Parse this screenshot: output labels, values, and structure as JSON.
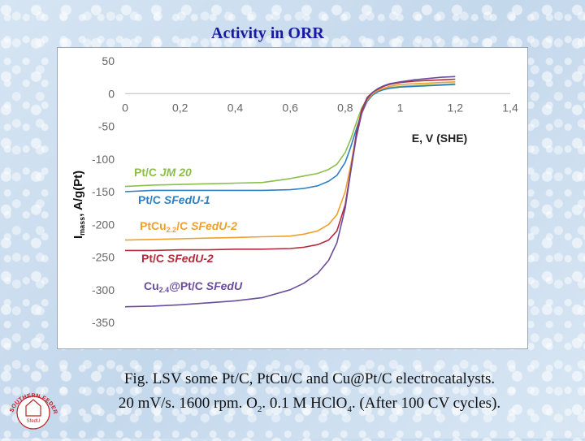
{
  "slide": {
    "title": "Activity in ORR",
    "caption_line1": "Fig. LSV some Pt/C, PtCu/C and Cu@Pt/C electrocatalysts.",
    "caption_line2_a": "20 mV/s. 1600 rpm. O",
    "caption_line2_sub1": "2",
    "caption_line2_b": ". 0.1 M HClO",
    "caption_line2_sub2": "4",
    "caption_line2_c": ". (After 100 CV cycles).",
    "logo_text": "SOUTHERN FEDERAL UNIVERSITY",
    "logo_mark": "SfedU"
  },
  "chart_data": {
    "type": "line",
    "title": "",
    "xlabel": "E, V (SHE)",
    "ylabel_main": "I",
    "ylabel_sub": "mass",
    "ylabel_rest": ", A/g(Pt)",
    "xlim": [
      0,
      1.4
    ],
    "ylim": [
      -350,
      50
    ],
    "x_ticks": [
      0,
      0.2,
      0.4,
      0.6,
      0.8,
      1,
      1.2,
      1.4
    ],
    "x_tick_labels": [
      "0",
      "0,2",
      "0,4",
      "0,6",
      "0,8",
      "1",
      "1,2",
      "1,4"
    ],
    "y_ticks": [
      50,
      0,
      -50,
      -100,
      -150,
      -200,
      -250,
      -300,
      -350
    ],
    "y_tick_labels": [
      "50",
      "0",
      "-50",
      "-100",
      "-150",
      "-200",
      "-250",
      "-300",
      "-350"
    ],
    "grid": false,
    "series": [
      {
        "name": "Pt/C JM 20",
        "label_parts": [
          {
            "text": "Pt/C  "
          },
          {
            "text": "JM 20",
            "italic": true
          }
        ],
        "color": "#8cbf4a",
        "x": [
          0.0,
          0.1,
          0.2,
          0.3,
          0.4,
          0.5,
          0.6,
          0.65,
          0.7,
          0.74,
          0.77,
          0.8,
          0.82,
          0.84,
          0.86,
          0.88,
          0.9,
          0.92,
          0.94,
          0.96,
          1.0,
          1.05,
          1.1,
          1.15,
          1.2
        ],
        "y": [
          -142,
          -140,
          -139,
          -138,
          -137,
          -136,
          -130,
          -126,
          -122,
          -116,
          -108,
          -90,
          -70,
          -45,
          -22,
          -8,
          0,
          4,
          7,
          9,
          11,
          12,
          13,
          14,
          15
        ]
      },
      {
        "name": "Pt/C SFedU-1",
        "label_parts": [
          {
            "text": "Pt/C  "
          },
          {
            "text": "SFedU-1",
            "italic": true
          }
        ],
        "color": "#2e7fc2",
        "x": [
          0.0,
          0.1,
          0.2,
          0.3,
          0.4,
          0.5,
          0.6,
          0.65,
          0.7,
          0.74,
          0.77,
          0.8,
          0.82,
          0.84,
          0.86,
          0.88,
          0.9,
          0.92,
          0.94,
          0.96,
          1.0,
          1.05,
          1.1,
          1.15,
          1.2
        ],
        "y": [
          -150,
          -148,
          -148,
          -148,
          -148,
          -148,
          -147,
          -145,
          -141,
          -134,
          -125,
          -105,
          -82,
          -55,
          -30,
          -12,
          -2,
          3,
          6,
          8,
          10,
          11,
          12,
          13,
          14
        ]
      },
      {
        "name": "PtCu2.2/C SFedU-2",
        "label_parts": [
          {
            "text": "PtCu"
          },
          {
            "text": "2.2",
            "sub": true
          },
          {
            "text": "/C  "
          },
          {
            "text": "SFedU-2",
            "italic": true
          }
        ],
        "color": "#f0a02a",
        "x": [
          0.0,
          0.1,
          0.2,
          0.3,
          0.4,
          0.5,
          0.6,
          0.65,
          0.7,
          0.74,
          0.77,
          0.8,
          0.82,
          0.84,
          0.86,
          0.88,
          0.9,
          0.92,
          0.94,
          0.96,
          1.0,
          1.05,
          1.1,
          1.15,
          1.2
        ],
        "y": [
          -224,
          -223,
          -222,
          -221,
          -220,
          -219,
          -218,
          -215,
          -210,
          -200,
          -185,
          -150,
          -110,
          -65,
          -30,
          -10,
          0,
          5,
          8,
          11,
          14,
          15,
          16,
          17,
          18
        ]
      },
      {
        "name": "Pt/C SFedU-2",
        "label_parts": [
          {
            "text": "Pt/C  "
          },
          {
            "text": "SFedU-2",
            "italic": true
          }
        ],
        "color": "#b52a3a",
        "x": [
          0.0,
          0.1,
          0.2,
          0.3,
          0.4,
          0.5,
          0.6,
          0.65,
          0.7,
          0.74,
          0.77,
          0.8,
          0.82,
          0.84,
          0.86,
          0.88,
          0.9,
          0.92,
          0.94,
          0.96,
          1.0,
          1.05,
          1.1,
          1.15,
          1.2
        ],
        "y": [
          -240,
          -240,
          -239,
          -239,
          -238,
          -238,
          -237,
          -235,
          -231,
          -224,
          -210,
          -170,
          -118,
          -62,
          -25,
          -6,
          2,
          7,
          11,
          14,
          17,
          19,
          20,
          21,
          22
        ]
      },
      {
        "name": "Cu2.4@Pt/C SFedU",
        "label_parts": [
          {
            "text": "Cu"
          },
          {
            "text": "2.4",
            "sub": true
          },
          {
            "text": "@Pt/C  "
          },
          {
            "text": "SFedU",
            "italic": true
          }
        ],
        "color": "#6a4c9c",
        "x": [
          0.0,
          0.1,
          0.2,
          0.3,
          0.4,
          0.5,
          0.6,
          0.65,
          0.7,
          0.74,
          0.77,
          0.8,
          0.82,
          0.84,
          0.86,
          0.88,
          0.9,
          0.92,
          0.94,
          0.96,
          1.0,
          1.05,
          1.1,
          1.15,
          1.2
        ],
        "y": [
          -326,
          -325,
          -323,
          -320,
          -317,
          -312,
          -300,
          -290,
          -275,
          -255,
          -228,
          -175,
          -120,
          -68,
          -30,
          -8,
          2,
          8,
          12,
          15,
          18,
          21,
          23,
          25,
          26
        ]
      }
    ]
  }
}
